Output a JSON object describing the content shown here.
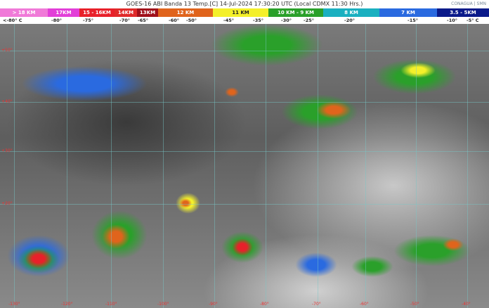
{
  "header": {
    "title": "GOES-16 ABI Banda 13 Temp.[C] 14-Jul-2024 17:30:20 UTC (Local CDMX  11:30 Hrs.)",
    "logos": "CONAGUA | SMN"
  },
  "legend": [
    {
      "label": "> 18 KM",
      "color": "#f07ad8"
    },
    {
      "label": "17KM",
      "color": "#e23fd8"
    },
    {
      "label": "15 - 16KM",
      "color": "#e8202a"
    },
    {
      "label": "14KM",
      "color": "#e02a2a"
    },
    {
      "label": "13KM",
      "color": "#a0101a"
    },
    {
      "label": "12 KM",
      "color": "#e0641c"
    },
    {
      "label": "11 KM",
      "color": "#f4f02a"
    },
    {
      "label": "10 KM - 9 KM",
      "color": "#2aa02a"
    },
    {
      "label": "8 KM",
      "color": "#1ab0c0"
    },
    {
      "label": "7 KM",
      "color": "#2a6ae0"
    },
    {
      "label": "3.5 - 5KM",
      "color": "#0a1a8a"
    }
  ],
  "temperatures": [
    "<-80° C",
    "-80°",
    "-75°",
    "-70°",
    "-65°",
    "-60°",
    "-50°",
    "-45°",
    "-35°",
    "-30°",
    "-25°",
    "-20°",
    "-15°",
    "-10°",
    "-5° C"
  ],
  "latitudes": [
    "+50°",
    "+40°",
    "+30°",
    "+20°"
  ],
  "longitudes": [
    "-130°",
    "-120°",
    "-110°",
    "-100°",
    "-90°",
    "-80°",
    "-70°",
    "-60°",
    "-50°",
    "-40°"
  ]
}
